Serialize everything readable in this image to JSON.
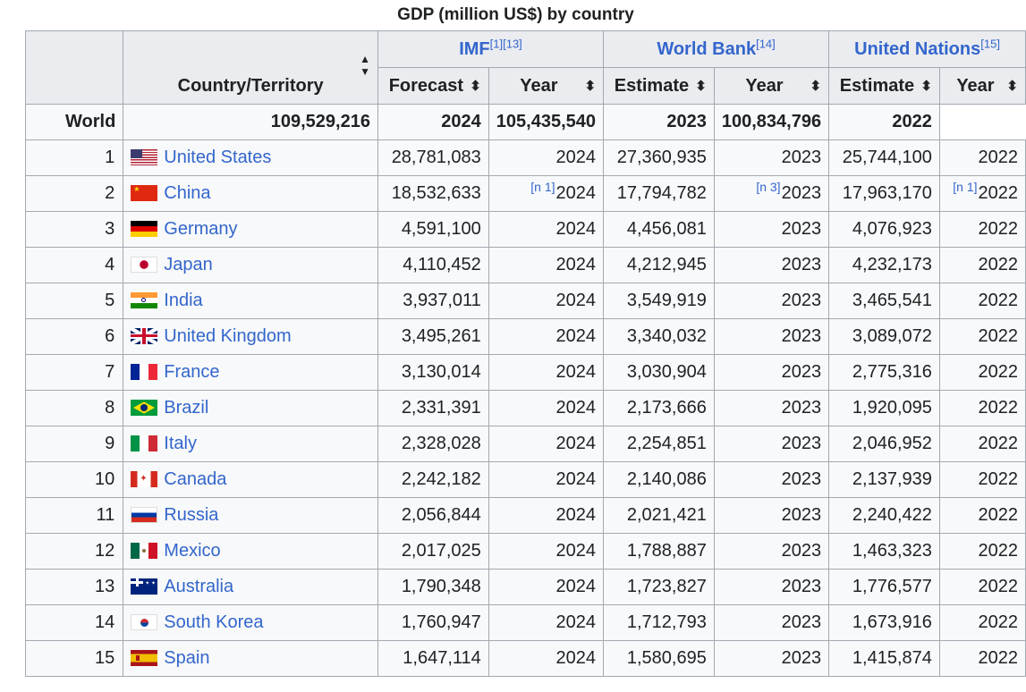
{
  "caption": "GDP (million US$) by country",
  "headers": {
    "country": "Country/Territory",
    "sources": [
      {
        "name": "IMF",
        "ref": "[1][13]"
      },
      {
        "name": "World Bank",
        "ref": "[14]"
      },
      {
        "name": "United Nations",
        "ref": "[15]"
      }
    ],
    "sub": [
      "Forecast",
      "Year",
      "Estimate",
      "Year",
      "Estimate",
      "Year"
    ]
  },
  "world": {
    "name": "World",
    "imf": "109,529,216",
    "imf_year": "2024",
    "wb": "105,435,540",
    "wb_year": "2023",
    "un": "100,834,796",
    "un_year": "2022"
  },
  "rows": [
    {
      "rank": "1",
      "country": "United States",
      "flag": "us-flag-icon",
      "imf": "28,781,083",
      "imf_year": "2024",
      "wb": "27,360,935",
      "wb_year": "2023",
      "un": "25,744,100",
      "un_year": "2022"
    },
    {
      "rank": "2",
      "country": "China",
      "flag": "cn-flag-icon",
      "imf": "18,532,633",
      "imf_note": "[n 1]",
      "imf_year": "2024",
      "wb": "17,794,782",
      "wb_note": "[n 3]",
      "wb_year": "2023",
      "un": "17,963,170",
      "un_note": "[n 1]",
      "un_year": "2022"
    },
    {
      "rank": "3",
      "country": "Germany",
      "flag": "de-flag-icon",
      "imf": "4,591,100",
      "imf_year": "2024",
      "wb": "4,456,081",
      "wb_year": "2023",
      "un": "4,076,923",
      "un_year": "2022"
    },
    {
      "rank": "4",
      "country": "Japan",
      "flag": "jp-flag-icon",
      "imf": "4,110,452",
      "imf_year": "2024",
      "wb": "4,212,945",
      "wb_year": "2023",
      "un": "4,232,173",
      "un_year": "2022"
    },
    {
      "rank": "5",
      "country": "India",
      "flag": "in-flag-icon",
      "imf": "3,937,011",
      "imf_year": "2024",
      "wb": "3,549,919",
      "wb_year": "2023",
      "un": "3,465,541",
      "un_year": "2022"
    },
    {
      "rank": "6",
      "country": "United Kingdom",
      "flag": "gb-flag-icon",
      "imf": "3,495,261",
      "imf_year": "2024",
      "wb": "3,340,032",
      "wb_year": "2023",
      "un": "3,089,072",
      "un_year": "2022"
    },
    {
      "rank": "7",
      "country": "France",
      "flag": "fr-flag-icon",
      "imf": "3,130,014",
      "imf_year": "2024",
      "wb": "3,030,904",
      "wb_year": "2023",
      "un": "2,775,316",
      "un_year": "2022"
    },
    {
      "rank": "8",
      "country": "Brazil",
      "flag": "br-flag-icon",
      "imf": "2,331,391",
      "imf_year": "2024",
      "wb": "2,173,666",
      "wb_year": "2023",
      "un": "1,920,095",
      "un_year": "2022"
    },
    {
      "rank": "9",
      "country": "Italy",
      "flag": "it-flag-icon",
      "imf": "2,328,028",
      "imf_year": "2024",
      "wb": "2,254,851",
      "wb_year": "2023",
      "un": "2,046,952",
      "un_year": "2022"
    },
    {
      "rank": "10",
      "country": "Canada",
      "flag": "ca-flag-icon",
      "imf": "2,242,182",
      "imf_year": "2024",
      "wb": "2,140,086",
      "wb_year": "2023",
      "un": "2,137,939",
      "un_year": "2022"
    },
    {
      "rank": "11",
      "country": "Russia",
      "flag": "ru-flag-icon",
      "imf": "2,056,844",
      "imf_year": "2024",
      "wb": "2,021,421",
      "wb_year": "2023",
      "un": "2,240,422",
      "un_year": "2022"
    },
    {
      "rank": "12",
      "country": "Mexico",
      "flag": "mx-flag-icon",
      "imf": "2,017,025",
      "imf_year": "2024",
      "wb": "1,788,887",
      "wb_year": "2023",
      "un": "1,463,323",
      "un_year": "2022"
    },
    {
      "rank": "13",
      "country": "Australia",
      "flag": "au-flag-icon",
      "imf": "1,790,348",
      "imf_year": "2024",
      "wb": "1,723,827",
      "wb_year": "2023",
      "un": "1,776,577",
      "un_year": "2022"
    },
    {
      "rank": "14",
      "country": "South Korea",
      "flag": "kr-flag-icon",
      "imf": "1,760,947",
      "imf_year": "2024",
      "wb": "1,712,793",
      "wb_year": "2023",
      "un": "1,673,916",
      "un_year": "2022"
    },
    {
      "rank": "15",
      "country": "Spain",
      "flag": "es-flag-icon",
      "imf": "1,647,114",
      "imf_year": "2024",
      "wb": "1,580,695",
      "wb_year": "2023",
      "un": "1,415,874",
      "un_year": "2022"
    }
  ]
}
